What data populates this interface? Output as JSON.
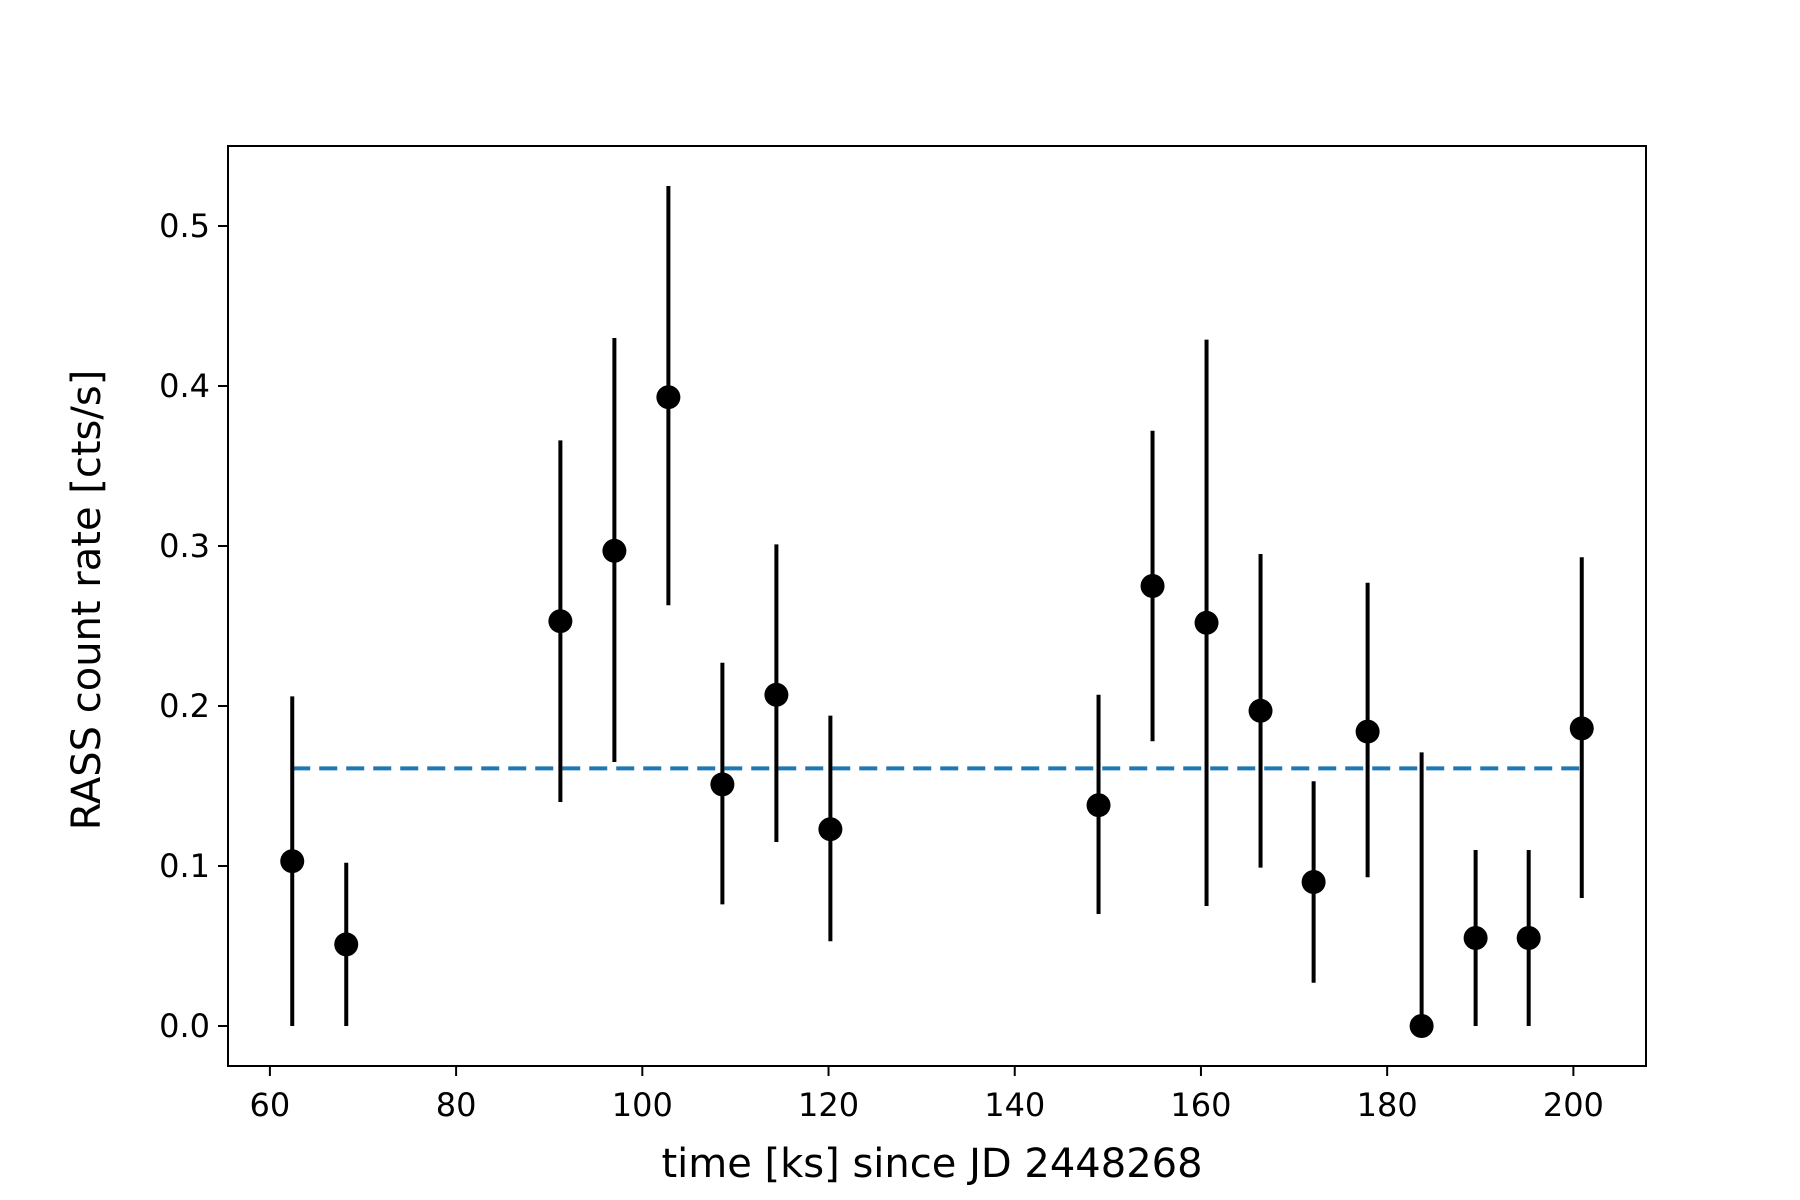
{
  "chart_data": {
    "type": "scatter",
    "title": "",
    "xlabel": "time [ks] since JD 2448268",
    "ylabel": "RASS count rate [cts/s]",
    "xlim": [
      55.5,
      207.8
    ],
    "ylim": [
      -0.025,
      0.55
    ],
    "xticks": [
      60,
      80,
      100,
      120,
      140,
      160,
      180,
      200
    ],
    "yticks": [
      0.0,
      0.1,
      0.2,
      0.3,
      0.4,
      0.5
    ],
    "xtick_labels": [
      "60",
      "80",
      "100",
      "120",
      "140",
      "160",
      "180",
      "200"
    ],
    "ytick_labels": [
      "0.0",
      "0.1",
      "0.2",
      "0.3",
      "0.4",
      "0.5"
    ],
    "grid": false,
    "colors": {
      "points": "#000000",
      "mean_line": "#1f77b4"
    },
    "series": [
      {
        "type": "errorbar",
        "points": [
          {
            "x": 62.4,
            "y": 0.103,
            "lo": 0.0,
            "hi": 0.206
          },
          {
            "x": 68.2,
            "y": 0.051,
            "lo": 0.0,
            "hi": 0.102
          },
          {
            "x": 91.2,
            "y": 0.253,
            "lo": 0.14,
            "hi": 0.366
          },
          {
            "x": 97.0,
            "y": 0.297,
            "lo": 0.165,
            "hi": 0.43
          },
          {
            "x": 102.8,
            "y": 0.393,
            "lo": 0.263,
            "hi": 0.525
          },
          {
            "x": 108.6,
            "y": 0.151,
            "lo": 0.076,
            "hi": 0.227
          },
          {
            "x": 114.4,
            "y": 0.207,
            "lo": 0.115,
            "hi": 0.301
          },
          {
            "x": 120.2,
            "y": 0.123,
            "lo": 0.053,
            "hi": 0.194
          },
          {
            "x": 149.0,
            "y": 0.138,
            "lo": 0.07,
            "hi": 0.207
          },
          {
            "x": 154.8,
            "y": 0.275,
            "lo": 0.178,
            "hi": 0.372
          },
          {
            "x": 160.6,
            "y": 0.252,
            "lo": 0.075,
            "hi": 0.429
          },
          {
            "x": 166.4,
            "y": 0.197,
            "lo": 0.099,
            "hi": 0.295
          },
          {
            "x": 172.1,
            "y": 0.09,
            "lo": 0.027,
            "hi": 0.153
          },
          {
            "x": 177.9,
            "y": 0.184,
            "lo": 0.093,
            "hi": 0.277
          },
          {
            "x": 183.7,
            "y": 0.0,
            "lo": 0.0,
            "hi": 0.171
          },
          {
            "x": 189.5,
            "y": 0.055,
            "lo": 0.0,
            "hi": 0.11
          },
          {
            "x": 195.2,
            "y": 0.055,
            "lo": 0.0,
            "hi": 0.11
          },
          {
            "x": 200.9,
            "y": 0.186,
            "lo": 0.08,
            "hi": 0.293
          }
        ]
      },
      {
        "type": "hline",
        "style": "dashed",
        "y": 0.161,
        "x_start": 62.4,
        "x_end": 200.9
      }
    ]
  }
}
